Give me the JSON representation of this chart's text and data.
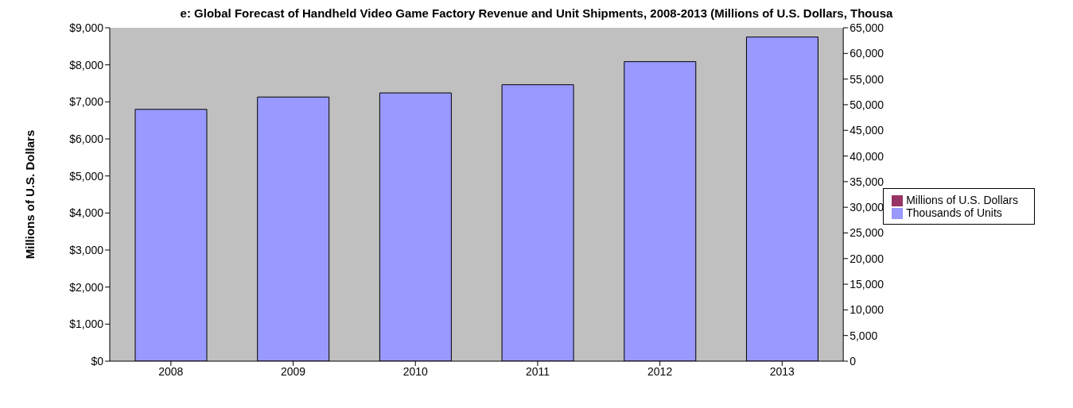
{
  "chart_data": {
    "type": "bar",
    "title": "e: Global Forecast of Handheld Video Game Factory Revenue and Unit Shipments, 2008-2013 (Millions of U.S. Dollars, Thousa",
    "ylabel": "Millions of U.S. Dollars",
    "categories": [
      "2008",
      "2009",
      "2010",
      "2011",
      "2012",
      "2013"
    ],
    "series": [
      {
        "name": "Millions of U.S. Dollars",
        "color": "#993366",
        "values": [
          null,
          null,
          null,
          null,
          null,
          null
        ]
      },
      {
        "name": "Thousands of Units",
        "color": "#9999ff",
        "axis": "y2",
        "values": [
          49100,
          51500,
          52300,
          53900,
          58400,
          63200
        ]
      }
    ],
    "ylim": [
      0,
      9000
    ],
    "yticks": [
      {
        "value": 0,
        "label": "$0"
      },
      {
        "value": 1000,
        "label": "$1,000"
      },
      {
        "value": 2000,
        "label": "$2,000"
      },
      {
        "value": 3000,
        "label": "$3,000"
      },
      {
        "value": 4000,
        "label": "$4,000"
      },
      {
        "value": 5000,
        "label": "$5,000"
      },
      {
        "value": 6000,
        "label": "$6,000"
      },
      {
        "value": 7000,
        "label": "$7,000"
      },
      {
        "value": 8000,
        "label": "$8,000"
      },
      {
        "value": 9000,
        "label": "$9,000"
      }
    ],
    "y2lim": [
      0,
      65000
    ],
    "y2ticks": [
      0,
      {
        "value": 5000,
        "label": "5,000"
      },
      {
        "value": 10000,
        "label": "10,000"
      },
      {
        "value": 15000,
        "label": "15,000"
      },
      {
        "value": 20000,
        "label": "20,000"
      },
      {
        "value": 25000,
        "label": "25,000"
      },
      {
        "value": 30000,
        "label": "30,000"
      },
      {
        "value": 35000,
        "label": "35,000"
      },
      {
        "value": 40000,
        "label": "40,000"
      },
      {
        "value": 45000,
        "label": "45,000"
      },
      {
        "value": 50000,
        "label": "50,000"
      },
      {
        "value": 55000,
        "label": "55,000"
      },
      {
        "value": 60000,
        "label": "60,000"
      },
      {
        "value": 65000,
        "label": "65,000"
      }
    ],
    "grid": false,
    "legend": "right"
  }
}
